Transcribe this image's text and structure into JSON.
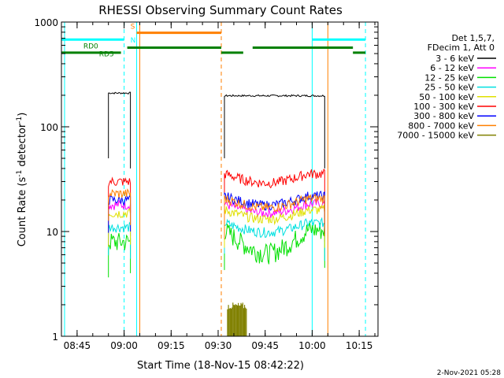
{
  "chart_data": {
    "type": "line",
    "title": "RHESSI Observing Summary Count Rates",
    "xlabel": "Start Time (18-Nov-15 08:42:22)",
    "ylabel_main": "Count Rate (s",
    "ylabel_sup1": "-1",
    "ylabel_mid": " detector",
    "ylabel_sup2": "-1",
    "ylabel_end": ")",
    "y_scale": "log",
    "xlim": [
      "08:40",
      "10:21"
    ],
    "ylim": [
      1,
      1000
    ],
    "x_ticks": [
      "08:45",
      "09:00",
      "09:15",
      "09:30",
      "09:45",
      "10:00",
      "10:15"
    ],
    "y_ticks": [
      {
        "value": 1,
        "label": "1"
      },
      {
        "value": 10,
        "label": "10"
      },
      {
        "value": 100,
        "label": "100"
      },
      {
        "value": 1000,
        "label": "1000"
      }
    ],
    "legend_header": [
      "Det 1,5,7,",
      "FDecim 1, Att 0"
    ],
    "legend_placement": "right",
    "series": [
      {
        "name": "3 - 6 keV",
        "color": "#000000",
        "segments": [
          {
            "start": "08:55",
            "end": "09:02",
            "level": 210
          },
          {
            "start": "09:32",
            "end": "10:04",
            "level": 198
          }
        ]
      },
      {
        "name": "6 - 12 keV",
        "color": "#ff00ff",
        "segments": [
          {
            "start": "08:55",
            "end": "09:02",
            "level": 18
          },
          {
            "start": "09:32",
            "end": "10:04",
            "level": 16
          }
        ]
      },
      {
        "name": "12 - 25 keV",
        "color": "#00e000",
        "segments": [
          {
            "start": "08:55",
            "end": "09:02",
            "level": 8
          },
          {
            "start": "09:32",
            "end": "10:04",
            "level": 9
          }
        ]
      },
      {
        "name": "25 - 50 keV",
        "color": "#00e0e0",
        "segments": [
          {
            "start": "08:55",
            "end": "09:02",
            "level": 11
          },
          {
            "start": "09:32",
            "end": "10:04",
            "level": 10.5
          }
        ]
      },
      {
        "name": "50 - 100 keV",
        "color": "#e0e000",
        "segments": [
          {
            "start": "08:55",
            "end": "09:02",
            "level": 15
          },
          {
            "start": "09:32",
            "end": "10:04",
            "level": 14
          }
        ]
      },
      {
        "name": "100 - 300 keV",
        "color": "#ff0000",
        "segments": [
          {
            "start": "08:55",
            "end": "09:02",
            "level": 30
          },
          {
            "start": "09:32",
            "end": "10:04",
            "level": 31
          }
        ]
      },
      {
        "name": "300 - 800 keV",
        "color": "#0000ff",
        "segments": [
          {
            "start": "08:55",
            "end": "09:02",
            "level": 20
          },
          {
            "start": "09:32",
            "end": "10:04",
            "level": 19
          }
        ]
      },
      {
        "name": "800 - 7000 keV",
        "color": "#ff8000",
        "segments": [
          {
            "start": "08:55",
            "end": "09:02",
            "level": 23
          },
          {
            "start": "09:32",
            "end": "10:04",
            "level": 18
          }
        ]
      },
      {
        "name": "7000 - 15000 keV",
        "color": "#808000",
        "segments": [
          {
            "start": "09:33",
            "end": "09:39",
            "level": 2
          }
        ]
      }
    ],
    "status_bars": [
      {
        "label": "",
        "color": "#00ffff",
        "level": 680,
        "spans": [
          [
            "08:40",
            "09:00"
          ],
          [
            "10:00",
            "10:17"
          ]
        ]
      },
      {
        "label": "S",
        "color": "#ff8000",
        "level": 790,
        "spans": [
          [
            "09:04",
            "09:31"
          ]
        ]
      },
      {
        "label": "N",
        "color": "#00ffff",
        "level": 680,
        "spans": []
      },
      {
        "label": "RD0",
        "color": "#008000",
        "level": 510,
        "spans": [
          [
            "08:40",
            "08:59"
          ]
        ]
      },
      {
        "label": "RD5",
        "color": "#008000",
        "level": 570,
        "spans": [
          [
            "09:01",
            "09:31"
          ],
          [
            "09:41",
            "10:13"
          ]
        ]
      },
      {
        "label": "",
        "color": "#008000",
        "level": 510,
        "spans": [
          [
            "09:31",
            "09:38"
          ],
          [
            "10:13",
            "10:17"
          ]
        ]
      }
    ],
    "vertical_lines": [
      {
        "time": "08:41",
        "color": "#00ffff",
        "style": "solid"
      },
      {
        "time": "09:00",
        "color": "#00ffff",
        "style": "dashed"
      },
      {
        "time": "09:04",
        "color": "#00ffff",
        "style": "solid"
      },
      {
        "time": "09:05",
        "color": "#ff8000",
        "style": "solid"
      },
      {
        "time": "09:31",
        "color": "#ff8000",
        "style": "dashed"
      },
      {
        "time": "10:00",
        "color": "#00ffff",
        "style": "solid"
      },
      {
        "time": "10:05",
        "color": "#ff8000",
        "style": "solid"
      },
      {
        "time": "10:17",
        "color": "#00ffff",
        "style": "dashed"
      }
    ]
  },
  "footer": {
    "date_stamp": "2-Nov-2021 05:28"
  }
}
